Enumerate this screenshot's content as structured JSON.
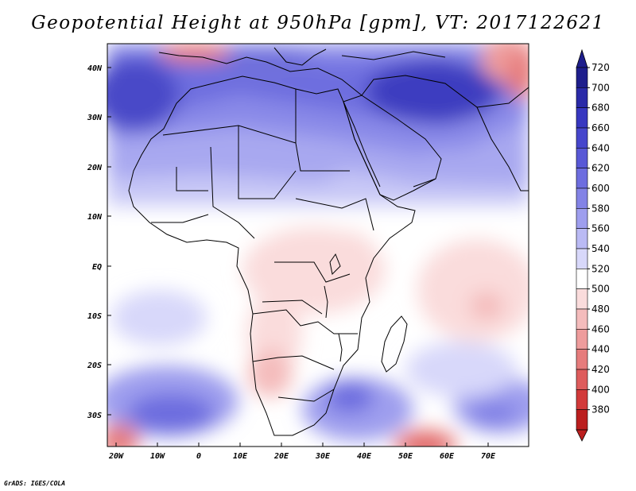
{
  "title": "Geopotential Height at 950hPa [gpm], VT: 2017122621",
  "credit": "GrADS: IGES/COLA",
  "axes": {
    "lat_labels": [
      "40N",
      "30N",
      "20N",
      "10N",
      "EQ",
      "10S",
      "20S",
      "30S"
    ],
    "lon_labels": [
      "20W",
      "10W",
      "0",
      "10E",
      "20E",
      "30E",
      "40E",
      "50E",
      "60E",
      "70E"
    ]
  },
  "colorbar": {
    "labels": [
      "720",
      "700",
      "680",
      "660",
      "640",
      "620",
      "600",
      "580",
      "560",
      "540",
      "520",
      "500",
      "480",
      "460",
      "440",
      "420",
      "400",
      "380"
    ],
    "colors": [
      "#1e1e8c",
      "#2a2aa8",
      "#3737c0",
      "#4646cc",
      "#5858d6",
      "#6d6ddf",
      "#8383e6",
      "#9e9eee",
      "#babaf4",
      "#d8d8fa",
      "#ffffff",
      "#fadcdc",
      "#f4bcbc",
      "#ee9c9c",
      "#e67c7c",
      "#de5c5c",
      "#d23a3a",
      "#bb1e1e"
    ]
  },
  "colors": {
    "positive_strong": "#2a2aa8",
    "neutral": "#ffffff",
    "negative_strong": "#d23a3a"
  }
}
